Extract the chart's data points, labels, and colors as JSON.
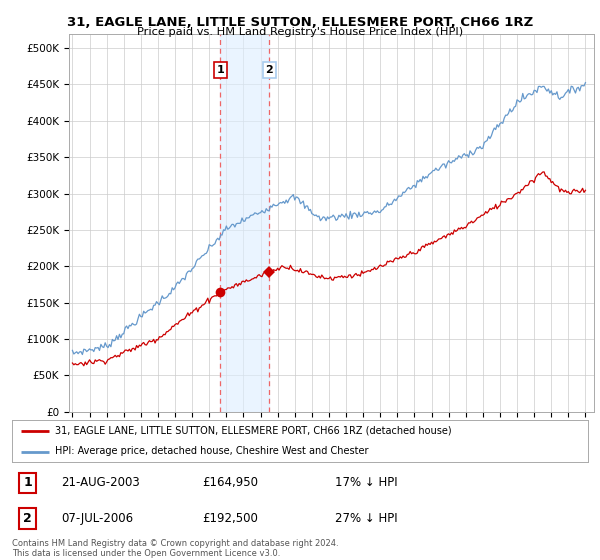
{
  "title": "31, EAGLE LANE, LITTLE SUTTON, ELLESMERE PORT, CH66 1RZ",
  "subtitle": "Price paid vs. HM Land Registry's House Price Index (HPI)",
  "ylabel_ticks": [
    "£0",
    "£50K",
    "£100K",
    "£150K",
    "£200K",
    "£250K",
    "£300K",
    "£350K",
    "£400K",
    "£450K",
    "£500K"
  ],
  "ytick_values": [
    0,
    50000,
    100000,
    150000,
    200000,
    250000,
    300000,
    350000,
    400000,
    450000,
    500000
  ],
  "ylim": [
    0,
    520000
  ],
  "xlim_start": 1994.8,
  "xlim_end": 2025.5,
  "purchase1": {
    "date": "21-AUG-2003",
    "price": 164950,
    "label": "1",
    "year": 2003.64,
    "pct": "17%"
  },
  "purchase2": {
    "date": "07-JUL-2006",
    "price": 192500,
    "label": "2",
    "year": 2006.52,
    "pct": "27%"
  },
  "legend_red": "31, EAGLE LANE, LITTLE SUTTON, ELLESMERE PORT, CH66 1RZ (detached house)",
  "legend_blue": "HPI: Average price, detached house, Cheshire West and Chester",
  "footer": "Contains HM Land Registry data © Crown copyright and database right 2024.\nThis data is licensed under the Open Government Licence v3.0.",
  "red_color": "#cc0000",
  "blue_color": "#6699cc",
  "shaded_color": "#ddeeff",
  "grid_color": "#cccccc",
  "background_color": "#ffffff"
}
